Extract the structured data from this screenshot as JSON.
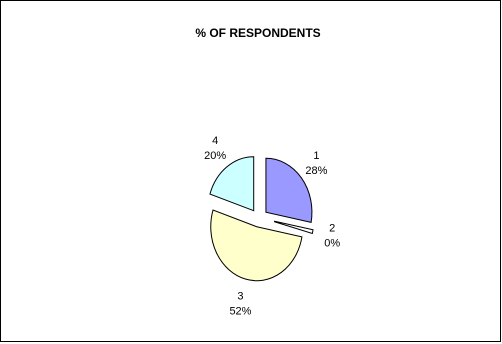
{
  "chart_data": {
    "type": "pie",
    "title": "% OF RESPONDENTS",
    "exploded": true,
    "legend": "none",
    "slices": [
      {
        "category": "1",
        "value": 28,
        "label": "28%",
        "color": "#9999ff"
      },
      {
        "category": "2",
        "value": 0,
        "label": "0%",
        "color": "#ffffff"
      },
      {
        "category": "3",
        "value": 52,
        "label": "52%",
        "color": "#ffffcc"
      },
      {
        "category": "4",
        "value": 20,
        "label": "20%",
        "color": "#ccffff"
      }
    ]
  }
}
